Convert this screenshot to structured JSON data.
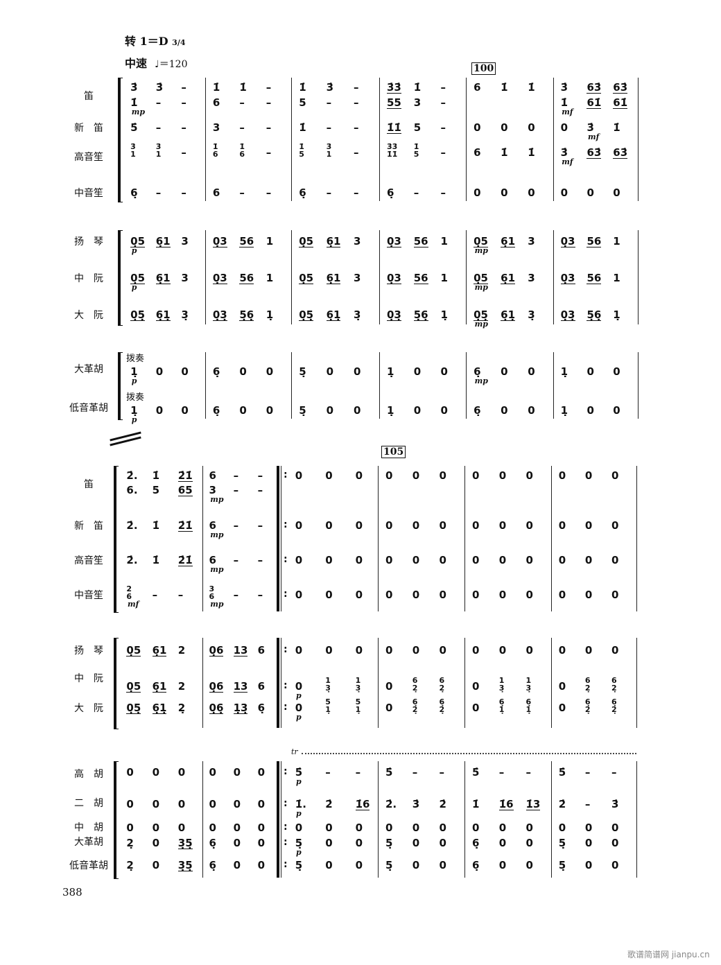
{
  "header": {
    "key": "转 1＝D",
    "time_signature": "3/4",
    "tempo_label": "中速",
    "tempo_value": "♩＝120"
  },
  "systems": [
    {
      "rehearsal_mark": "100",
      "rows": [
        {
          "name": "笛",
          "measures": [
            "3̇ 3̇ –",
            "1̇ 1̇ –",
            "1̇ 3̇ –",
            "3̇3̇ 1̇ –",
            "6 1̇ 1̇",
            "3̇ 63̇ 63̇"
          ],
          "dyn": []
        },
        {
          "name": "",
          "measures": [
            "1̇ – –",
            "6 – –",
            "5 – –",
            "55 3 –",
            "",
            "1̇ 61̇ 61̇"
          ],
          "dyn": [
            {
              "m": 0,
              "text": "mp"
            },
            {
              "m": 5,
              "text": "mf"
            }
          ]
        },
        {
          "name": "新　笛",
          "measures": [
            "5̇ – –",
            "3 – –",
            "1̇ – –",
            "1̇1̇ 5 –",
            "0 0 0",
            "0 3̇ 1̇"
          ],
          "dyn": [
            {
              "m": 5,
              "b": 1,
              "text": "mf"
            }
          ]
        },
        {
          "name": "高音笙",
          "measures": [
            "3̇/1 3̇/1 –",
            "1̇/6 1̇/6 –",
            "1̇/5 3̇/1 –",
            "3̇3̇/1̇1̇ 1̇/5 –",
            "6 1̇ 1̇",
            "3̇ 63̇ 63̇"
          ],
          "dyn": [
            {
              "m": 5,
              "text": "mf"
            }
          ]
        },
        {
          "name": "中音笙",
          "measures": [
            "6̣ – –",
            "6 – –",
            "6̣ – –",
            "6̣ – –",
            "0 0 0",
            "0 0 0"
          ],
          "dyn": []
        },
        {
          "name": "扬　琴",
          "measures": [
            "0̣5 6̣1 3",
            "0̣3 56 1",
            "0̣5 6̣1 3",
            "0̣3 56 1",
            "0̣5 6̣1 3",
            "0̣3 56 1"
          ],
          "dyn": [
            {
              "m": 0,
              "text": "p"
            },
            {
              "m": 4,
              "text": "mp"
            }
          ]
        },
        {
          "name": "中　阮",
          "measures": [
            "0̣5 6̣1 3",
            "0̣3 56 1",
            "0̣5 6̣1 3",
            "0̣3 56 1",
            "0̣5 6̣1 3",
            "0̣3 56 1"
          ],
          "dyn": [
            {
              "m": 0,
              "text": "p"
            },
            {
              "m": 4,
              "text": "mp"
            }
          ]
        },
        {
          "name": "大　阮",
          "measures": [
            "0̣5̣ 6̣1̣ 3̣",
            "0̣3̣ 5̣6̣ 1̣",
            "0̣5̣ 6̣1̣ 3̣",
            "0̣3̣ 5̣6̣ 1̣",
            "0̣5̣ 6̣1̣ 3̣",
            "0̣3̣ 5̣6̣ 1̣"
          ],
          "dyn": [
            {
              "m": 4,
              "text": "mp"
            }
          ]
        },
        {
          "name": "大革胡",
          "technique": "拨奏",
          "measures": [
            "1̣ 0 0",
            "6̣ 0 0",
            "5̣ 0 0",
            "1̣ 0 0",
            "6̣ 0 0",
            "1̣ 0 0"
          ],
          "dyn": [
            {
              "m": 0,
              "text": "p"
            },
            {
              "m": 4,
              "text": "mp"
            }
          ]
        },
        {
          "name": "低音革胡",
          "technique": "拨奏",
          "measures": [
            "1̣ 0 0",
            "6̣ 0 0",
            "5̣ 0 0",
            "1̣ 0 0",
            "6̣ 0 0",
            "1̣ 0 0"
          ],
          "dyn": [
            {
              "m": 0,
              "text": "p"
            }
          ]
        }
      ]
    },
    {
      "rehearsal_mark": "105",
      "trill": "tr",
      "rows": [
        {
          "name": "笛",
          "measures": [
            "2̇. 1̇ 2̇1̇",
            "6 – –",
            "0 0 0",
            "0 0 0",
            "0 0 0",
            "0 0 0"
          ],
          "dyn": []
        },
        {
          "name": "",
          "measures": [
            "6. 5 65",
            "3 – –",
            "",
            "",
            "",
            ""
          ],
          "dyn": [
            {
              "m": 1,
              "text": "mp"
            }
          ]
        },
        {
          "name": "新　笛",
          "measures": [
            "2̇. 1̇ 2̇1̇",
            "6 – –",
            "0 0 0",
            "0 0 0",
            "0 0 0",
            "0 0 0"
          ],
          "dyn": [
            {
              "m": 1,
              "text": "mp"
            }
          ]
        },
        {
          "name": "高音笙",
          "measures": [
            "2̇. 1̇ 2̇1̇",
            "6 – –",
            "0 0 0",
            "0 0 0",
            "0 0 0",
            "0 0 0"
          ],
          "dyn": [
            {
              "m": 1,
              "text": "mp"
            }
          ]
        },
        {
          "name": "中音笙",
          "measures": [
            "2/6 – –",
            "3/6 – –",
            "0 0 0",
            "0 0 0",
            "0 0 0",
            "0 0 0"
          ],
          "dyn": [
            {
              "m": 0,
              "text": "mf"
            },
            {
              "m": 1,
              "text": "mp"
            }
          ]
        },
        {
          "name": "扬　琴",
          "measures": [
            "0̣5 6̣1 2",
            "0̣6 13 6",
            "0 0 0",
            "0 0 0",
            "0 0 0",
            "0 0 0"
          ],
          "dyn": []
        },
        {
          "name": "中　阮",
          "measures": [
            "0̣5 6̣1 2",
            "0̣6 13 6",
            "0 1/3̣ 1/3̣",
            "0 6/2̣ 6/2̣",
            "0 1/3̣ 1/3̣",
            "0 6/2̣ 6/2̣"
          ],
          "dyn": [
            {
              "m": 2,
              "text": "p"
            }
          ]
        },
        {
          "name": "大　阮",
          "measures": [
            "0̣5̣ 6̣1̣ 2̣",
            "0̣6̣ 1̣3̣ 6̣",
            "0 5/1̣ 5/1̣",
            "0 6̣/2̣ 6̣/2̣",
            "0 6̣/1̣ 6̣/1̣",
            "0 6̣/2̣ 6̣/2̣"
          ],
          "dyn": [
            {
              "m": 2,
              "text": "p"
            }
          ]
        },
        {
          "name": "高　胡",
          "measures": [
            "0 0 0",
            "0 0 0",
            "5̇ – –",
            "5̇ – –",
            "5̇ – –",
            "5̇ – –"
          ],
          "dyn": [
            {
              "m": 2,
              "text": "p"
            }
          ]
        },
        {
          "name": "二　胡",
          "measures": [
            "0 0 0",
            "0 0 0",
            "1̇. 2̇ 1̇6",
            "2̇. 3̇ 2̇",
            "1̇ 1̇6 1̇3",
            "2̇ – 3̇"
          ],
          "dyn": [
            {
              "m": 2,
              "text": "p"
            }
          ]
        },
        {
          "name": "中　胡",
          "measures": [
            "0 0 0",
            "0 0 0",
            "0 0 0",
            "0 0 0",
            "0 0 0",
            "0 0 0"
          ],
          "dyn": []
        },
        {
          "name": "大革胡",
          "measures": [
            "2̣ 0 3̣5̣",
            "6̣ 0 0",
            "5̣ 0 0",
            "5̣ 0 0",
            "6̣ 0 0",
            "5̣ 0 0"
          ],
          "dyn": [
            {
              "m": 2,
              "text": "p"
            }
          ]
        },
        {
          "name": "低音革胡",
          "measures": [
            "2̣ 0 3̣5̣",
            "6̣ 0 0",
            "5̣ 0 0",
            "5̣ 0 0",
            "6̣ 0 0",
            "5̣ 0 0"
          ],
          "dyn": []
        }
      ]
    }
  ],
  "page_number": "388",
  "watermark": "歌谱简谱网 jianpu.cn"
}
